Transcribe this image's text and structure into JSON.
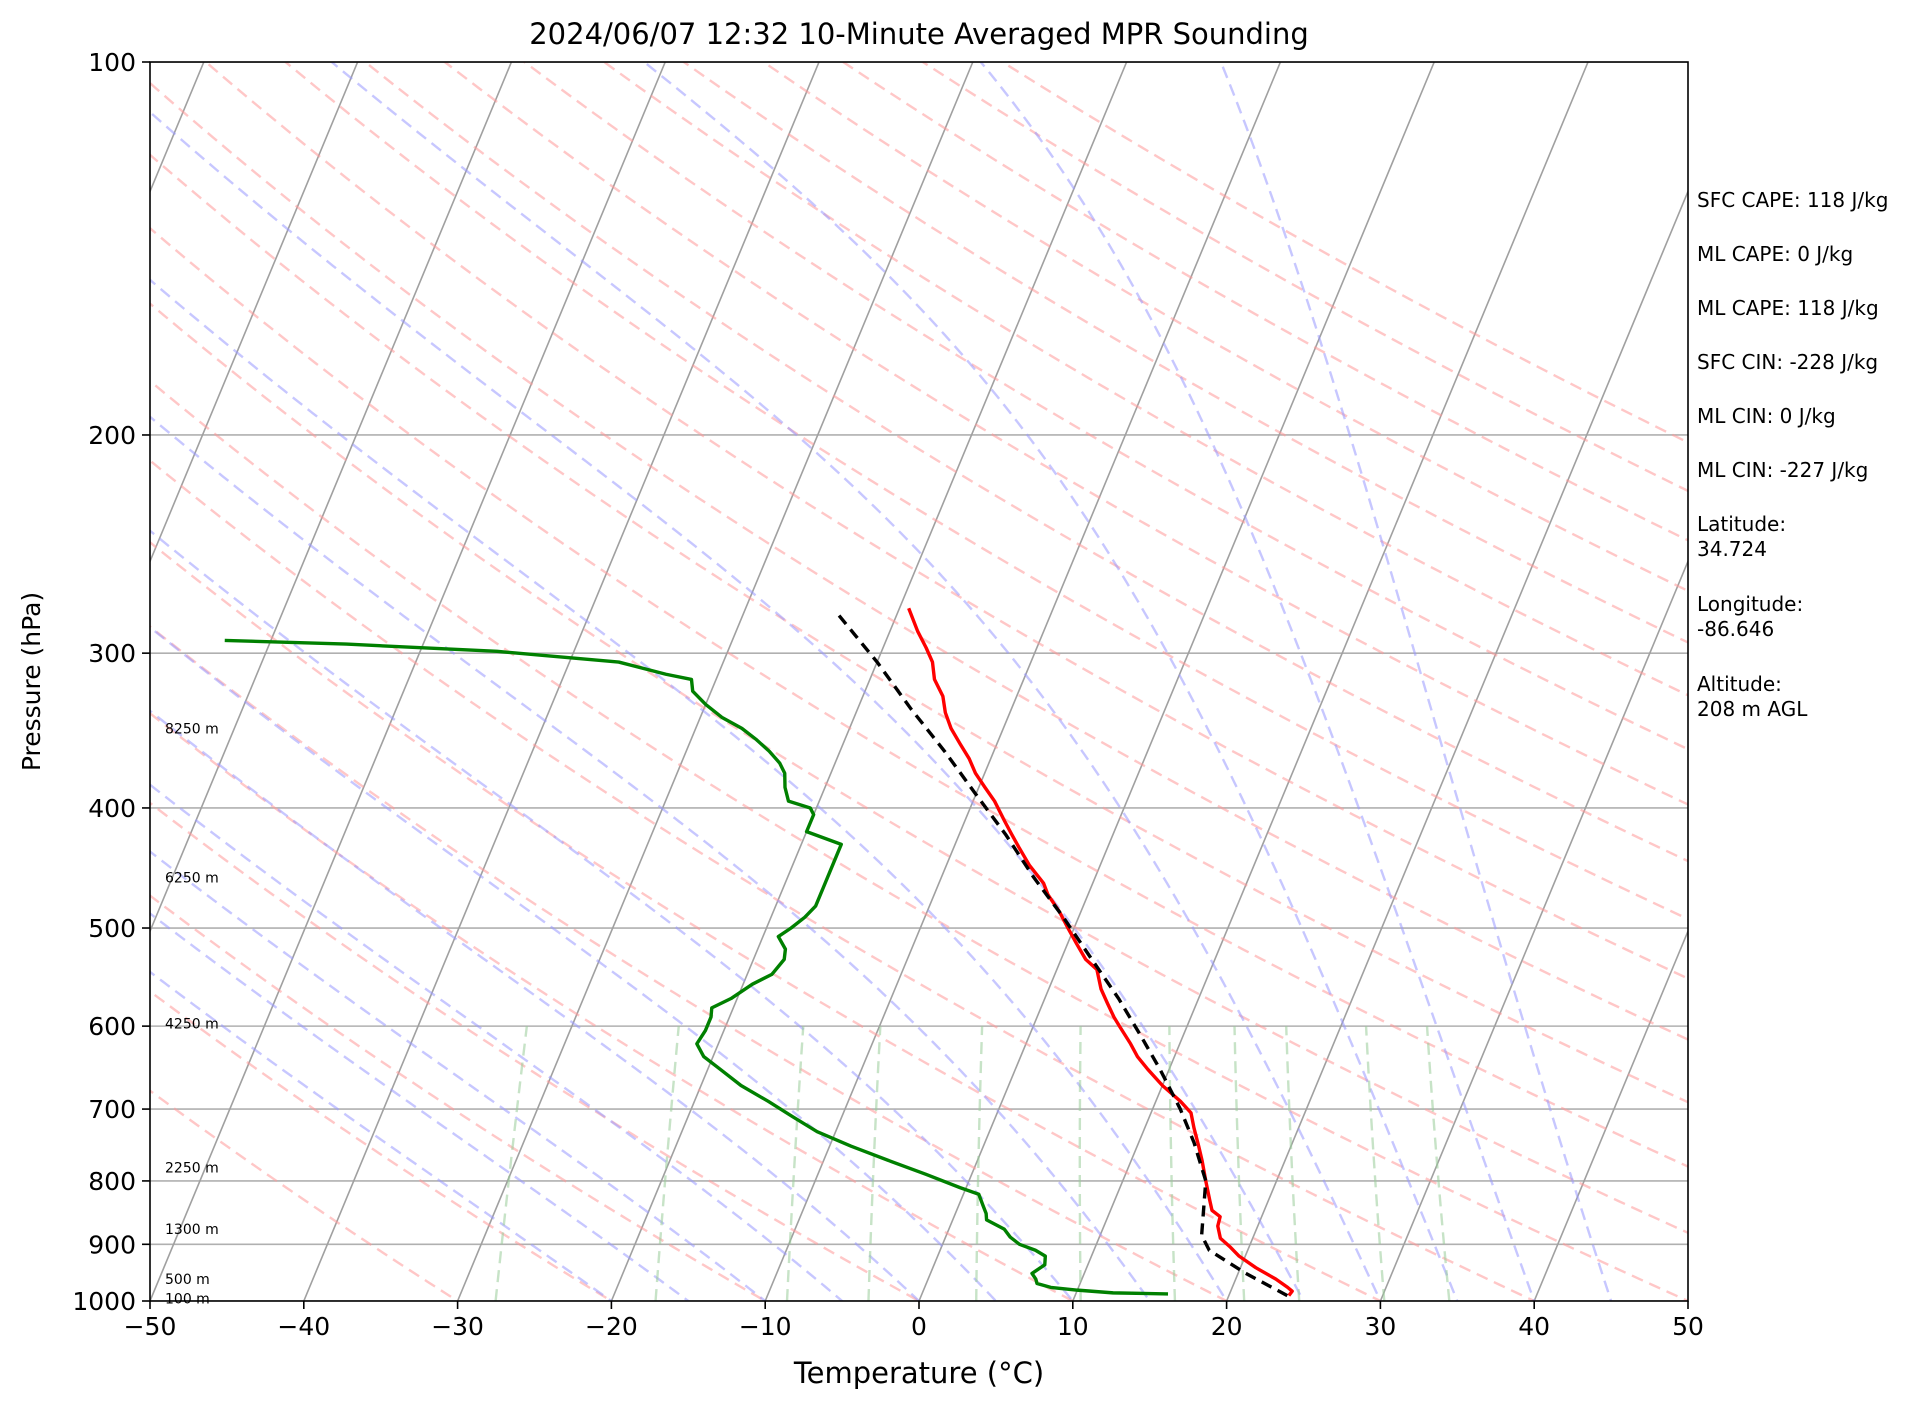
{
  "chart_data": {
    "type": "line",
    "subtype": "skew-T log-p sounding",
    "title": "2024/06/07 12:32 10-Minute Averaged MPR Sounding",
    "xlabel": "Temperature (°C)",
    "ylabel": "Pressure (hPa)",
    "xlim": [
      -50,
      50
    ],
    "ylim": [
      1000,
      100
    ],
    "y_scale": "log",
    "x_ticks": [
      -50,
      -40,
      -30,
      -20,
      -10,
      0,
      10,
      20,
      30,
      40,
      50
    ],
    "x_tick_labels": [
      "−50",
      "−40",
      "−30",
      "−20",
      "−10",
      "0",
      "10",
      "20",
      "30",
      "40",
      "50"
    ],
    "y_ticks": [
      100,
      200,
      300,
      400,
      500,
      600,
      700,
      800,
      900,
      1000
    ],
    "y_tick_labels": [
      "100",
      "200",
      "300",
      "400",
      "500",
      "600",
      "700",
      "800",
      "900",
      "1000"
    ],
    "height_labels": [
      {
        "p": 345,
        "text": "8250 m"
      },
      {
        "p": 455,
        "text": "6250 m"
      },
      {
        "p": 597,
        "text": "4250 m"
      },
      {
        "p": 780,
        "text": "2250 m"
      },
      {
        "p": 875,
        "text": "1300 m"
      },
      {
        "p": 960,
        "text": "500 m"
      },
      {
        "p": 995,
        "text": "100 m"
      }
    ],
    "series": [
      {
        "role": "temperature",
        "color": "#ff0000",
        "points": [
          [
            23.9,
            990
          ],
          [
            24.0,
            982
          ],
          [
            23.6,
            975
          ],
          [
            22.6,
            960
          ],
          [
            21.0,
            940
          ],
          [
            19.6,
            920
          ],
          [
            18.8,
            905
          ],
          [
            17.9,
            890
          ],
          [
            17.4,
            870
          ],
          [
            17.3,
            855
          ],
          [
            16.6,
            845
          ],
          [
            16.2,
            830
          ],
          [
            15.4,
            800
          ],
          [
            14.6,
            770
          ],
          [
            14.0,
            750
          ],
          [
            13.2,
            725
          ],
          [
            12.6,
            705
          ],
          [
            11.6,
            690
          ],
          [
            10.0,
            670
          ],
          [
            8.6,
            650
          ],
          [
            7.6,
            635
          ],
          [
            6.8,
            620
          ],
          [
            5.6,
            600
          ],
          [
            5.0,
            590
          ],
          [
            4.2,
            575
          ],
          [
            3.4,
            560
          ],
          [
            2.6,
            540
          ],
          [
            1.6,
            530
          ],
          [
            0.6,
            515
          ],
          [
            -0.4,
            500
          ],
          [
            -1.4,
            485
          ],
          [
            -2.6,
            470
          ],
          [
            -3.2,
            460
          ],
          [
            -4.6,
            445
          ],
          [
            -5.8,
            430
          ],
          [
            -6.6,
            420
          ],
          [
            -7.4,
            410
          ],
          [
            -8.6,
            395
          ],
          [
            -9.6,
            385
          ],
          [
            -10.6,
            375
          ],
          [
            -11.4,
            365
          ],
          [
            -12.4,
            355
          ],
          [
            -13.4,
            345
          ],
          [
            -14.2,
            335
          ],
          [
            -14.8,
            325
          ],
          [
            -15.8,
            315
          ],
          [
            -16.4,
            305
          ],
          [
            -17.2,
            297
          ],
          [
            -18.2,
            288
          ],
          [
            -19.4,
            276
          ]
        ]
      },
      {
        "role": "dewpoint",
        "color": "#008000",
        "points": [
          [
            16.0,
            987
          ],
          [
            12.4,
            985
          ],
          [
            10.0,
            980
          ],
          [
            8.2,
            975
          ],
          [
            7.2,
            968
          ],
          [
            7.0,
            960
          ],
          [
            6.6,
            950
          ],
          [
            7.2,
            935
          ],
          [
            7.0,
            920
          ],
          [
            6.2,
            910
          ],
          [
            5.0,
            900
          ],
          [
            4.2,
            888
          ],
          [
            3.6,
            875
          ],
          [
            2.2,
            860
          ],
          [
            2.0,
            850
          ],
          [
            1.6,
            838
          ],
          [
            1.0,
            820
          ],
          [
            -0.4,
            810
          ],
          [
            -3.0,
            790
          ],
          [
            -5.8,
            770
          ],
          [
            -8.6,
            750
          ],
          [
            -11.2,
            730
          ],
          [
            -13.2,
            710
          ],
          [
            -15.2,
            690
          ],
          [
            -17.4,
            670
          ],
          [
            -19.2,
            650
          ],
          [
            -20.6,
            635
          ],
          [
            -21.4,
            620
          ],
          [
            -21.2,
            605
          ],
          [
            -21.2,
            590
          ],
          [
            -21.4,
            580
          ],
          [
            -20.4,
            570
          ],
          [
            -19.4,
            555
          ],
          [
            -18.4,
            545
          ],
          [
            -18.0,
            530
          ],
          [
            -18.2,
            520
          ],
          [
            -19.0,
            508
          ],
          [
            -18.4,
            500
          ],
          [
            -17.8,
            490
          ],
          [
            -17.4,
            480
          ],
          [
            -17.4,
            465
          ],
          [
            -17.4,
            450
          ],
          [
            -17.4,
            435
          ],
          [
            -17.4,
            428
          ],
          [
            -20.0,
            418
          ],
          [
            -20.0,
            405
          ],
          [
            -20.4,
            400
          ],
          [
            -22.0,
            395
          ],
          [
            -22.6,
            385
          ],
          [
            -23.0,
            375
          ],
          [
            -23.6,
            368
          ],
          [
            -24.6,
            360
          ],
          [
            -25.8,
            352
          ],
          [
            -27.0,
            345
          ],
          [
            -28.6,
            338
          ],
          [
            -30.0,
            330
          ],
          [
            -31.2,
            322
          ],
          [
            -31.6,
            315
          ],
          [
            -33.4,
            312
          ],
          [
            -36.8,
            305
          ],
          [
            -45.0,
            299
          ],
          [
            -55.0,
            295
          ],
          [
            -63.0,
            293
          ]
        ]
      },
      {
        "role": "parcel profile",
        "color": "#000000",
        "dashed": true,
        "points": [
          [
            23.8,
            990
          ],
          [
            20.5,
            950
          ],
          [
            17.5,
            910
          ],
          [
            16.6,
            885
          ],
          [
            15.4,
            800
          ],
          [
            13.6,
            745
          ],
          [
            11.8,
            700
          ],
          [
            9.4,
            650
          ],
          [
            7.2,
            610
          ],
          [
            4.8,
            570
          ],
          [
            2.0,
            530
          ],
          [
            -1.0,
            490
          ],
          [
            -4.0,
            455
          ],
          [
            -7.0,
            420
          ],
          [
            -10.0,
            390
          ],
          [
            -13.2,
            360
          ],
          [
            -16.5,
            333
          ],
          [
            -20.0,
            305
          ],
          [
            -24.0,
            278
          ]
        ]
      }
    ],
    "background_lines": [
      {
        "name": "isotherms",
        "color": "#a0a0a0",
        "dashed": false
      },
      {
        "name": "dry adiabats",
        "color": "#ff9999",
        "dashed": true
      },
      {
        "name": "moist adiabats",
        "color": "#9999ff",
        "dashed": true
      },
      {
        "name": "mixing ratio lines",
        "color": "#99cc99",
        "dashed": true
      }
    ],
    "grid": true,
    "annotations": [
      {
        "key": "sfc_cape",
        "text": "SFC CAPE: 118 J/kg"
      },
      {
        "key": "ml_cape",
        "text": "ML CAPE: 0 J/kg"
      },
      {
        "key": "ml_cape_2",
        "text": "ML CAPE: 118 J/kg"
      },
      {
        "key": "sfc_cin",
        "text": "SFC CIN: -228 J/kg"
      },
      {
        "key": "ml_cin",
        "text": "ML CIN: 0 J/kg"
      },
      {
        "key": "ml_cin_2",
        "text": "ML CIN: -227 J/kg"
      },
      {
        "key": "latitude",
        "text": "Latitude:\n34.724"
      },
      {
        "key": "longitude",
        "text": "Longitude:\n-86.646"
      },
      {
        "key": "altitude",
        "text": "Altitude:\n208 m AGL"
      }
    ]
  }
}
